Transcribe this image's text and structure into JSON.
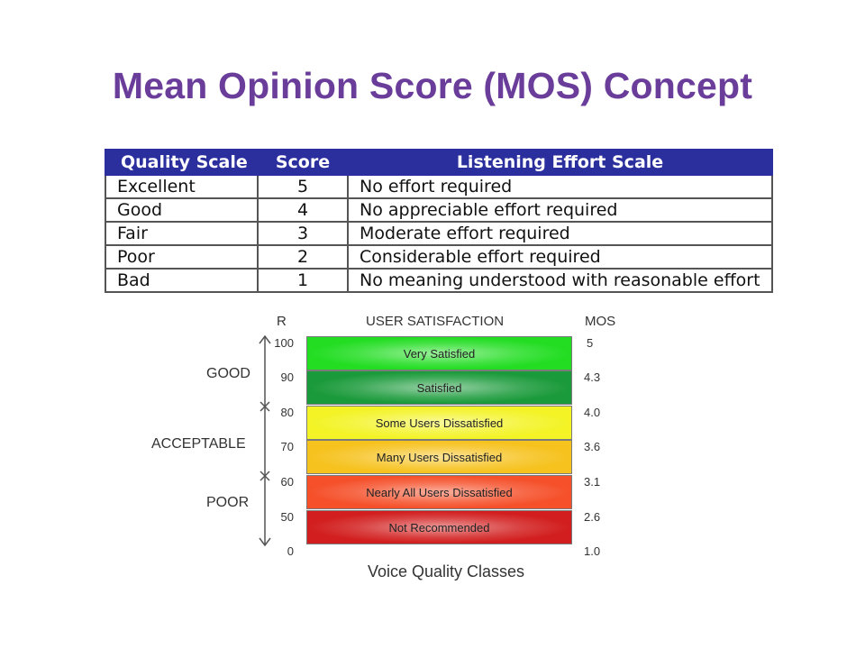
{
  "title": "Mean Opinion Score (MOS) Concept",
  "table": {
    "headers": [
      "Quality Scale",
      "Score",
      "Listening Effort Scale"
    ],
    "rows": [
      {
        "quality": "Excellent",
        "score": "5",
        "effort": "No effort required"
      },
      {
        "quality": "Good",
        "score": "4",
        "effort": "No appreciable effort required"
      },
      {
        "quality": "Fair",
        "score": "3",
        "effort": "Moderate effort required"
      },
      {
        "quality": "Poor",
        "score": "2",
        "effort": "Considerable effort required"
      },
      {
        "quality": "Bad",
        "score": "1",
        "effort": "No meaning understood with reasonable effort"
      }
    ],
    "colors": {
      "header_bg": "#2b2f9e",
      "header_text": "#ffffff"
    }
  },
  "figure": {
    "headers": {
      "r": "R",
      "satisfaction": "USER SATISFACTION",
      "mos": "MOS"
    },
    "r_ticks": [
      "100",
      "90",
      "80",
      "70",
      "60",
      "50",
      "0"
    ],
    "mos_ticks": [
      "5",
      "4.3",
      "4.0",
      "3.6",
      "3.1",
      "2.6",
      "1.0"
    ],
    "regions": [
      "GOOD",
      "ACCEPTABLE",
      "POOR"
    ],
    "bands": [
      {
        "label": "Very Satisfied",
        "color": "#22dd22"
      },
      {
        "label": "Satisfied",
        "color": "#1a9a3a"
      },
      {
        "label": "Some Users Dissatisfied",
        "color": "#f3f326"
      },
      {
        "label": "Many Users Dissatisfied",
        "color": "#f6c21e"
      },
      {
        "label": "Nearly All Users Dissatisfied",
        "color": "#f5502a"
      },
      {
        "label": "Not Recommended",
        "color": "#d21e1e"
      }
    ],
    "caption": "Voice Quality Classes"
  }
}
